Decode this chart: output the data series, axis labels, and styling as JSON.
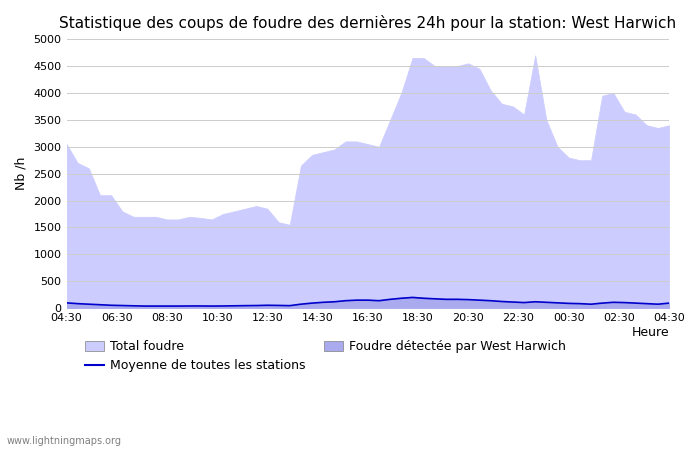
{
  "title": "Statistique des coups de foudre des dernières 24h pour la station: West Harwich",
  "ylabel": "Nb /h",
  "xlabel": "Heure",
  "ylim": [
    0,
    5000
  ],
  "yticks": [
    0,
    500,
    1000,
    1500,
    2000,
    2500,
    3000,
    3500,
    4000,
    4500,
    5000
  ],
  "xtick_labels": [
    "04:30",
    "06:30",
    "08:30",
    "10:30",
    "12:30",
    "14:30",
    "16:30",
    "18:30",
    "20:30",
    "22:30",
    "00:30",
    "02:30",
    "04:30"
  ],
  "background_color": "#ffffff",
  "plot_bg_color": "#ffffff",
  "grid_color": "#cccccc",
  "fill_total_color": "#ccccff",
  "fill_local_color": "#aaaaee",
  "line_color": "#0000cc",
  "watermark": "www.lightningmaps.org",
  "title_fontsize": 11,
  "label_fontsize": 9,
  "tick_fontsize": 8,
  "total_foudre": [
    3050,
    2700,
    2600,
    2100,
    2100,
    1800,
    1700,
    1700,
    1700,
    1650,
    1650,
    1700,
    1680,
    1650,
    1750,
    1800,
    1850,
    1900,
    1850,
    1600,
    1550,
    2650,
    2850,
    2900,
    2950,
    3100,
    3100,
    3050,
    3000,
    3500,
    4000,
    4650,
    4650,
    4500,
    4500,
    4500,
    4550,
    4450,
    4050,
    3800,
    3750,
    3600,
    4700,
    3500,
    3000,
    2800,
    2750,
    2750,
    3950,
    4000,
    3650,
    3600,
    3400,
    3350,
    3400
  ],
  "local_foudre": [
    100,
    90,
    80,
    70,
    60,
    50,
    50,
    50,
    50,
    50,
    50,
    50,
    50,
    50,
    50,
    50,
    50,
    55,
    60,
    55,
    50,
    80,
    100,
    120,
    130,
    150,
    160,
    160,
    150,
    180,
    200,
    220,
    200,
    190,
    180,
    180,
    170,
    160,
    150,
    130,
    120,
    110,
    130,
    120,
    110,
    100,
    90,
    80,
    100,
    120,
    110,
    100,
    90,
    80,
    100
  ],
  "moyenne": [
    100,
    85,
    75,
    65,
    55,
    50,
    45,
    40,
    40,
    40,
    40,
    42,
    42,
    40,
    42,
    45,
    48,
    50,
    55,
    52,
    48,
    75,
    95,
    110,
    120,
    140,
    150,
    150,
    140,
    165,
    185,
    200,
    185,
    175,
    165,
    165,
    160,
    150,
    140,
    125,
    115,
    105,
    120,
    110,
    100,
    90,
    85,
    75,
    95,
    110,
    105,
    95,
    85,
    75,
    95
  ]
}
